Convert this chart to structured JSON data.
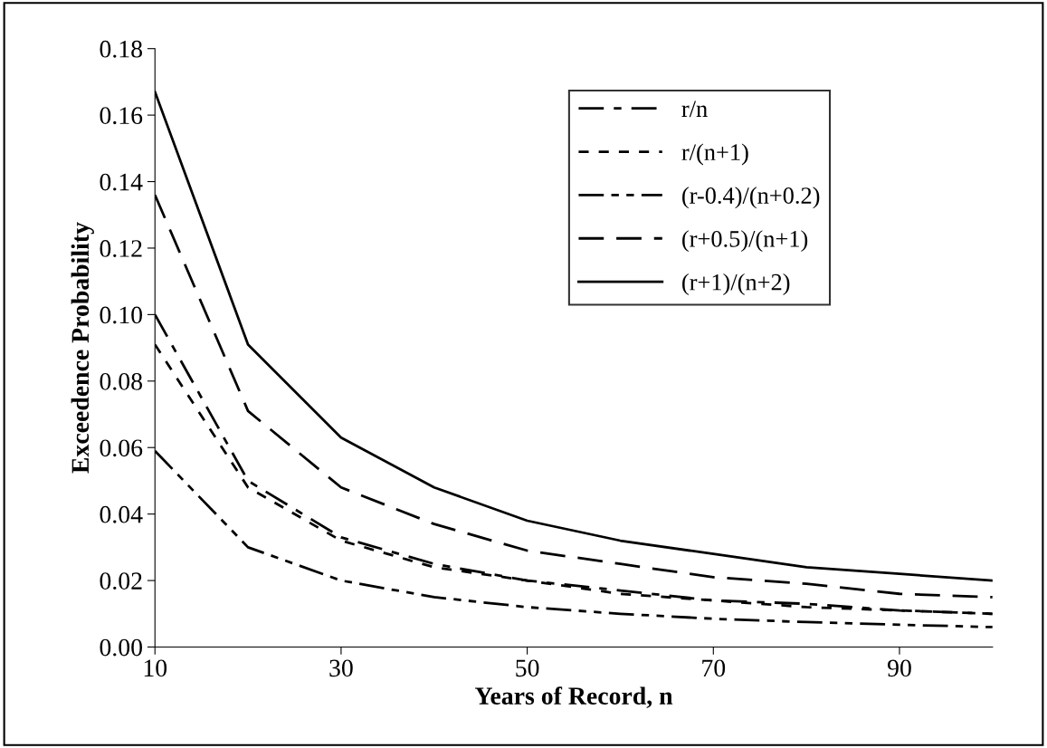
{
  "chart_data": {
    "type": "line",
    "xlabel": "Years of Record, n",
    "ylabel": "Exceedence Probability",
    "x": [
      10,
      20,
      30,
      40,
      50,
      60,
      70,
      80,
      90,
      100
    ],
    "series": [
      {
        "name": "r/n",
        "color": "#000000",
        "line_style": "dashdot",
        "values": [
          0.1,
          0.05,
          0.033,
          0.025,
          0.02,
          0.017,
          0.014,
          0.013,
          0.011,
          0.01
        ]
      },
      {
        "name": "r/(n+1)",
        "color": "#000000",
        "line_style": "dotted",
        "values": [
          0.091,
          0.048,
          0.032,
          0.024,
          0.02,
          0.016,
          0.014,
          0.012,
          0.011,
          0.01
        ]
      },
      {
        "name": "(r-0.4)/(n+0.2)",
        "color": "#000000",
        "line_style": "dashdotdot",
        "values": [
          0.059,
          0.03,
          0.02,
          0.015,
          0.012,
          0.01,
          0.0085,
          0.0075,
          0.0067,
          0.006
        ]
      },
      {
        "name": "(r+0.5)/(n+1)",
        "color": "#000000",
        "line_style": "dashed",
        "values": [
          0.136,
          0.071,
          0.048,
          0.037,
          0.029,
          0.025,
          0.021,
          0.019,
          0.016,
          0.015
        ]
      },
      {
        "name": "(r+1)/(n+2)",
        "color": "#000000",
        "line_style": "solid",
        "values": [
          0.167,
          0.091,
          0.063,
          0.048,
          0.038,
          0.032,
          0.028,
          0.024,
          0.022,
          0.02
        ]
      }
    ],
    "xlim": [
      10,
      100
    ],
    "xticks": [
      10,
      30,
      50,
      70,
      90
    ],
    "ylim": [
      0,
      0.18
    ],
    "yticks": [
      {
        "value": 0,
        "label": "0.00"
      },
      {
        "value": 0.02,
        "label": "0.02"
      },
      {
        "value": 0.04,
        "label": "0.04"
      },
      {
        "value": 0.06,
        "label": "0.06"
      },
      {
        "value": 0.08,
        "label": "0.08"
      },
      {
        "value": 0.1,
        "label": "0.10"
      },
      {
        "value": 0.12,
        "label": "0.12"
      },
      {
        "value": 0.14,
        "label": "0.14"
      },
      {
        "value": 0.16,
        "label": "0.16"
      },
      {
        "value": 0.18,
        "label": "0.18"
      }
    ],
    "grid": false,
    "legend": "top right",
    "marker": "none"
  }
}
